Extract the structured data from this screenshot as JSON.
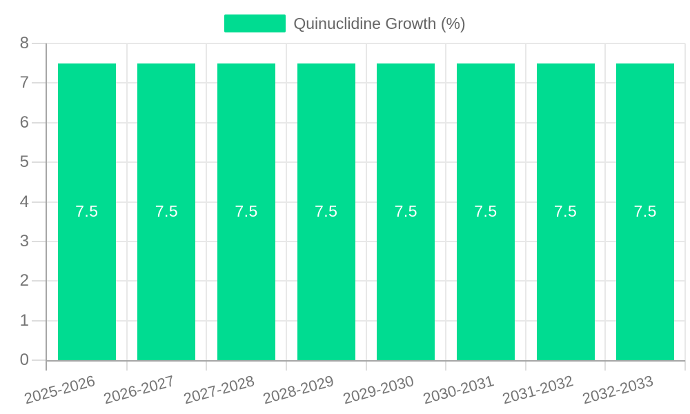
{
  "legend": {
    "label": "Quinuclidine Growth (%)"
  },
  "chart_data": {
    "type": "bar",
    "title": "",
    "categories": [
      "2025-2026",
      "2026-2027",
      "2027-2028",
      "2028-2029",
      "2029-2030",
      "2030-2031",
      "2031-2032",
      "2032-2033"
    ],
    "series": [
      {
        "name": "Quinuclidine Growth (%)",
        "values": [
          7.5,
          7.5,
          7.5,
          7.5,
          7.5,
          7.5,
          7.5,
          7.5
        ]
      }
    ],
    "value_labels": [
      "7.5",
      "7.5",
      "7.5",
      "7.5",
      "7.5",
      "7.5",
      "7.5",
      "7.5"
    ],
    "xlabel": "",
    "ylabel": "",
    "ylim": [
      0,
      8
    ],
    "ytick_step": 1,
    "yticks": [
      0,
      1,
      2,
      3,
      4,
      5,
      6,
      7,
      8
    ],
    "grid": true,
    "legend_position": "top",
    "x_label_rotation_deg": -15,
    "colors": {
      "bar": "#00DC91",
      "bar_value_text": "#FFFFFF",
      "axis_text": "#757575",
      "legend_text": "#666666",
      "gridline": "#E8E8E8",
      "axis_line": "#A6A6A6",
      "tick": "#DDDDDD",
      "background": "#FFFFFF"
    }
  }
}
